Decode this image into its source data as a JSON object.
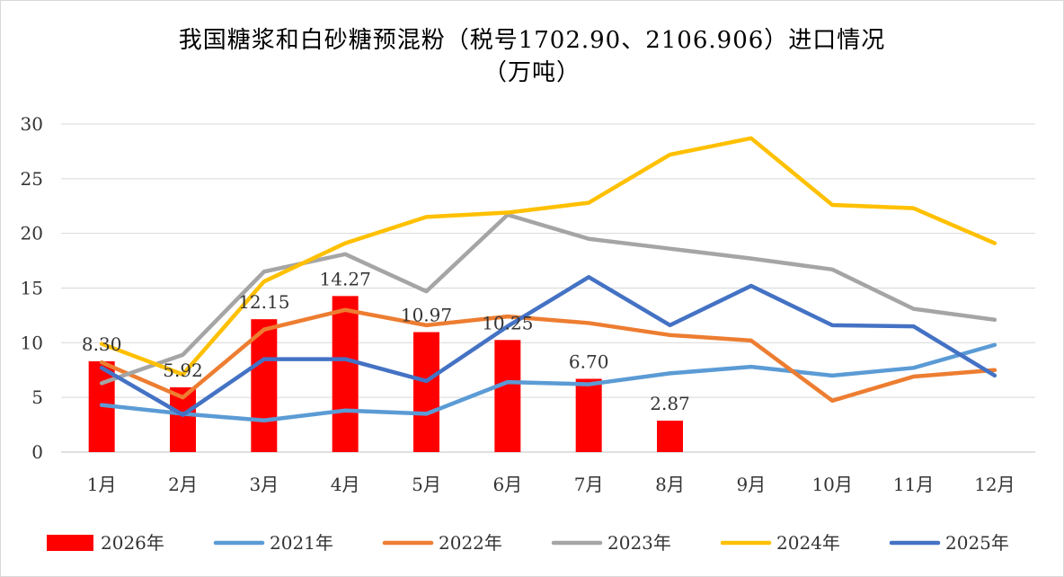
{
  "chart_data": {
    "type": "bar+line",
    "title_line1": "我国糖浆和白砂糖预混粉（税号1702.90、2106.906）进口情况",
    "title_line2": "（万吨）",
    "categories": [
      "1月",
      "2月",
      "3月",
      "4月",
      "5月",
      "6月",
      "7月",
      "8月",
      "9月",
      "10月",
      "11月",
      "12月"
    ],
    "ylim": [
      0,
      30
    ],
    "yticks": [
      "0",
      "5",
      "10",
      "15",
      "20",
      "25",
      "30"
    ],
    "grid": true,
    "legend_position": "bottom",
    "bar_series": {
      "name": "2026年",
      "color": "#ff0000",
      "values": [
        8.3,
        5.92,
        12.15,
        14.27,
        10.97,
        10.25,
        6.7,
        2.87
      ],
      "labels": [
        "8.30",
        "5.92",
        "12.15",
        "14.27",
        "10.97",
        "10.25",
        "6.70",
        "2.87"
      ]
    },
    "line_series": [
      {
        "name": "2021年",
        "color": "#5b9bd5",
        "values": [
          4.3,
          3.5,
          2.9,
          3.8,
          3.5,
          6.4,
          6.2,
          7.2,
          7.8,
          7.0,
          7.7,
          9.8
        ]
      },
      {
        "name": "2022年",
        "color": "#ed7d31",
        "values": [
          8.2,
          5.0,
          11.2,
          13.0,
          11.6,
          12.4,
          11.8,
          10.7,
          10.2,
          4.7,
          6.9,
          7.5
        ]
      },
      {
        "name": "2023年",
        "color": "#a5a5a5",
        "values": [
          6.3,
          8.9,
          16.5,
          18.1,
          14.7,
          21.7,
          19.5,
          18.6,
          17.7,
          16.7,
          13.1,
          12.1
        ]
      },
      {
        "name": "2024年",
        "color": "#ffc000",
        "values": [
          9.9,
          7.1,
          15.6,
          19.1,
          21.5,
          21.9,
          22.8,
          27.2,
          28.7,
          22.6,
          22.3,
          19.1
        ]
      },
      {
        "name": "2025年",
        "color": "#4472c4",
        "values": [
          7.7,
          3.4,
          8.5,
          8.5,
          6.5,
          11.5,
          16.0,
          11.6,
          15.2,
          11.6,
          11.5,
          7.0
        ]
      }
    ]
  }
}
